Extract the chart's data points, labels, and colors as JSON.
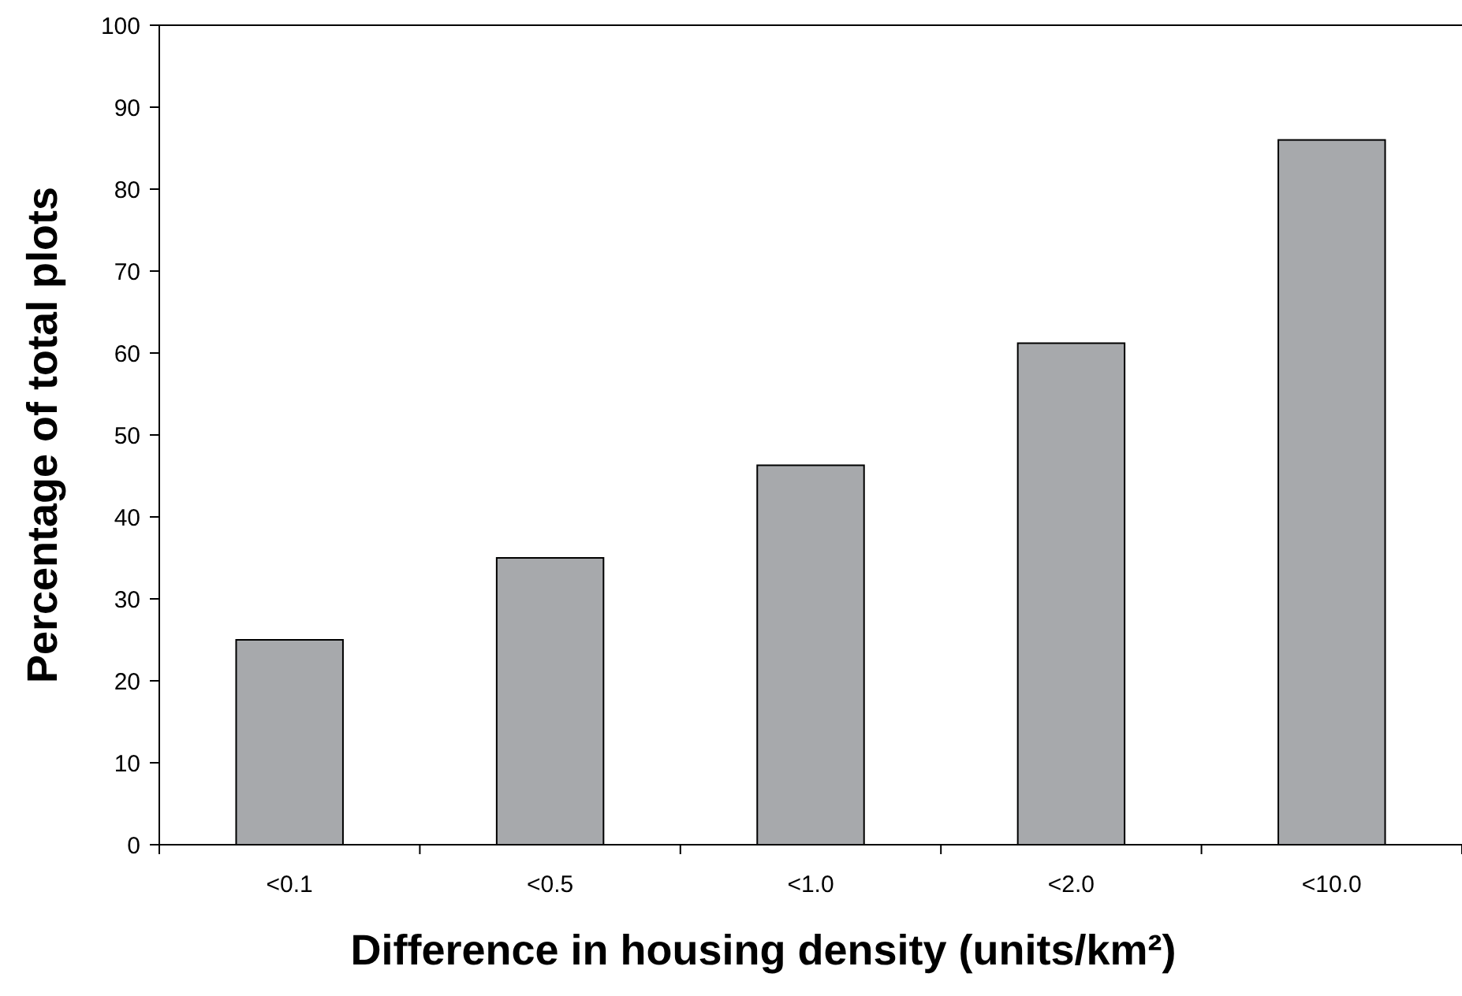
{
  "chart_data": {
    "type": "bar",
    "xlabel": "Difference in housing density (units/km²)",
    "ylabel": "Percentage of total plots",
    "categories": [
      "<0.1",
      "<0.5",
      "<1.0",
      "<2.0",
      "<10.0"
    ],
    "values": [
      25,
      35,
      46.3,
      61.2,
      86
    ],
    "color": "#a7a9ac",
    "ylim": [
      0,
      100
    ],
    "yticks": [
      0,
      10,
      20,
      30,
      40,
      50,
      60,
      70,
      80,
      90,
      100
    ]
  }
}
